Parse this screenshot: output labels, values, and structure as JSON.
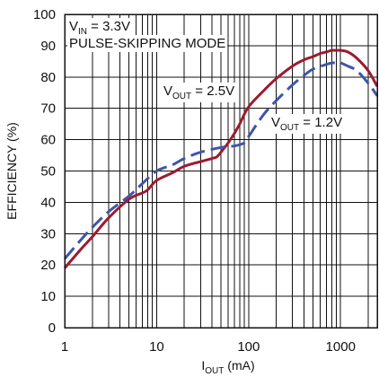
{
  "chart_data": {
    "type": "line",
    "xlabel": {
      "main": "I",
      "sub": "OUT",
      "suffix": " (mA)"
    },
    "ylabel": "EFFICIENCY (%)",
    "x_scale": "log",
    "xlim": [
      1,
      2500
    ],
    "ylim": [
      0,
      100
    ],
    "x_ticks": [
      {
        "value": 1,
        "label": "1"
      },
      {
        "value": 10,
        "label": "10"
      },
      {
        "value": 100,
        "label": "100"
      },
      {
        "value": 1000,
        "label": "1000"
      }
    ],
    "y_ticks": [
      0,
      10,
      20,
      30,
      40,
      50,
      60,
      70,
      80,
      90,
      100
    ],
    "grid": true,
    "annotations": {
      "vin": {
        "main": "V",
        "sub": "IN",
        "suffix": " = 3.3V"
      },
      "mode": "PULSE-SKIPPING MODE",
      "vout_25": {
        "main": "V",
        "sub": "OUT",
        "suffix": " = 2.5V"
      },
      "vout_12": {
        "main": "V",
        "sub": "OUT",
        "suffix": " = 1.2V"
      }
    },
    "series": [
      {
        "name": "VOUT = 2.5V",
        "color": "#9b1b30",
        "style": "solid",
        "x": [
          1,
          1.5,
          2,
          3,
          5,
          7,
          8,
          10,
          15,
          20,
          30,
          40,
          45,
          50,
          60,
          70,
          80,
          100,
          150,
          200,
          300,
          400,
          500,
          600,
          700,
          800,
          900,
          1000,
          1200,
          1500,
          2000,
          2500
        ],
        "y": [
          19,
          25,
          29,
          35,
          41,
          43,
          44,
          47,
          49.5,
          51.5,
          53,
          54,
          54.5,
          56,
          59,
          62,
          65,
          70.5,
          76,
          79.5,
          83.5,
          85.5,
          86.5,
          87.5,
          88,
          88.5,
          88.5,
          88.5,
          88,
          86,
          82,
          77
        ]
      },
      {
        "name": "VOUT = 1.2V",
        "color": "#3e56a6",
        "style": "dashed",
        "x": [
          1,
          1.5,
          2,
          3,
          5,
          7,
          10,
          15,
          20,
          30,
          50,
          70,
          90,
          100,
          120,
          150,
          200,
          300,
          400,
          500,
          700,
          800,
          900,
          1000,
          1200,
          1500,
          2000,
          2500
        ],
        "y": [
          22,
          28,
          32,
          37,
          42,
          46,
          50,
          52,
          54,
          56,
          57.5,
          58,
          59,
          61,
          64.5,
          68.5,
          72.5,
          77.5,
          80.5,
          82.5,
          84,
          84.5,
          84.5,
          84.5,
          83.5,
          82,
          78,
          74
        ]
      }
    ]
  }
}
